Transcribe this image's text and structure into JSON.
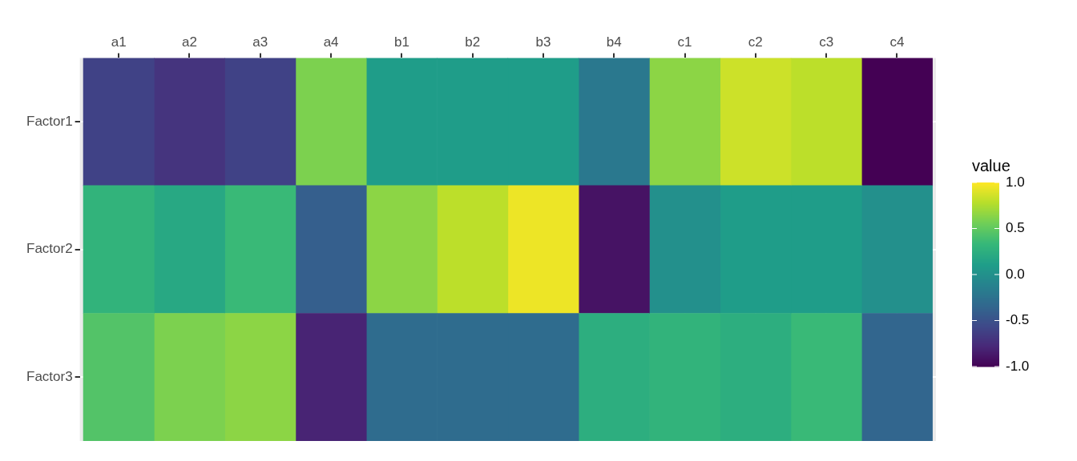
{
  "chart_data": {
    "type": "heatmap",
    "categories": [
      "a1",
      "a2",
      "a3",
      "a4",
      "b1",
      "b2",
      "b3",
      "b4",
      "c1",
      "c2",
      "c3",
      "c4"
    ],
    "y_categories": [
      "Factor1",
      "Factor2",
      "Factor3"
    ],
    "cells": [
      [
        -0.6,
        -0.7,
        -0.6,
        0.6,
        0.1,
        0.1,
        0.1,
        -0.2,
        0.65,
        0.85,
        0.8,
        -1.0
      ],
      [
        0.3,
        0.2,
        0.35,
        -0.4,
        0.65,
        0.8,
        0.95,
        -0.9,
        0.0,
        0.1,
        0.1,
        0.0
      ],
      [
        0.45,
        0.6,
        0.65,
        -0.8,
        -0.3,
        -0.3,
        -0.3,
        0.25,
        0.3,
        0.25,
        0.35,
        -0.35
      ]
    ],
    "clabel": "value",
    "clim": [
      -1,
      1
    ],
    "cticks": [
      {
        "value": 1,
        "label": "1.0"
      },
      {
        "value": 0.5,
        "label": "0.5"
      },
      {
        "value": 0,
        "label": "0.0"
      },
      {
        "value": -0.5,
        "label": "-0.5"
      },
      {
        "value": -1,
        "label": "-1.0"
      }
    ],
    "grid": true
  }
}
